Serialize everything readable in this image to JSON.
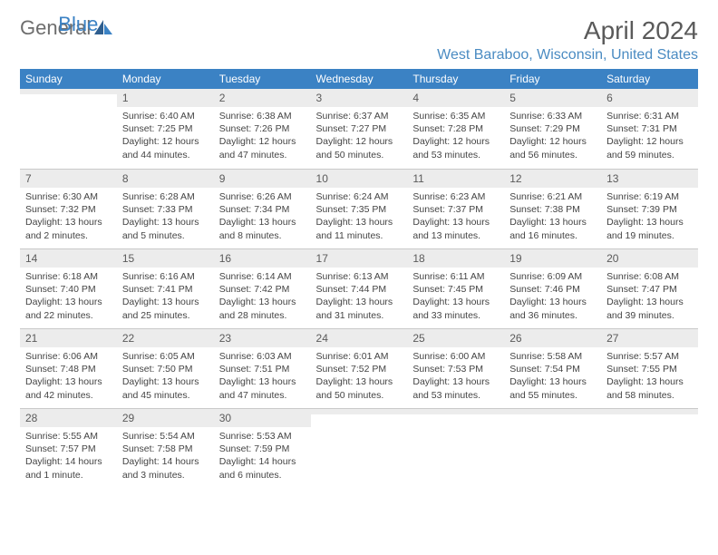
{
  "logo": {
    "part1": "General",
    "part2": "Blue"
  },
  "title": "April 2024",
  "location": "West Baraboo, Wisconsin, United States",
  "header_bg": "#3b82c4",
  "daynum_bg": "#ececec",
  "dayHeaders": [
    "Sunday",
    "Monday",
    "Tuesday",
    "Wednesday",
    "Thursday",
    "Friday",
    "Saturday"
  ],
  "weeks": [
    [
      {
        "n": "",
        "sr": "",
        "ss": "",
        "d1": "",
        "d2": ""
      },
      {
        "n": "1",
        "sr": "Sunrise: 6:40 AM",
        "ss": "Sunset: 7:25 PM",
        "d1": "Daylight: 12 hours",
        "d2": "and 44 minutes."
      },
      {
        "n": "2",
        "sr": "Sunrise: 6:38 AM",
        "ss": "Sunset: 7:26 PM",
        "d1": "Daylight: 12 hours",
        "d2": "and 47 minutes."
      },
      {
        "n": "3",
        "sr": "Sunrise: 6:37 AM",
        "ss": "Sunset: 7:27 PM",
        "d1": "Daylight: 12 hours",
        "d2": "and 50 minutes."
      },
      {
        "n": "4",
        "sr": "Sunrise: 6:35 AM",
        "ss": "Sunset: 7:28 PM",
        "d1": "Daylight: 12 hours",
        "d2": "and 53 minutes."
      },
      {
        "n": "5",
        "sr": "Sunrise: 6:33 AM",
        "ss": "Sunset: 7:29 PM",
        "d1": "Daylight: 12 hours",
        "d2": "and 56 minutes."
      },
      {
        "n": "6",
        "sr": "Sunrise: 6:31 AM",
        "ss": "Sunset: 7:31 PM",
        "d1": "Daylight: 12 hours",
        "d2": "and 59 minutes."
      }
    ],
    [
      {
        "n": "7",
        "sr": "Sunrise: 6:30 AM",
        "ss": "Sunset: 7:32 PM",
        "d1": "Daylight: 13 hours",
        "d2": "and 2 minutes."
      },
      {
        "n": "8",
        "sr": "Sunrise: 6:28 AM",
        "ss": "Sunset: 7:33 PM",
        "d1": "Daylight: 13 hours",
        "d2": "and 5 minutes."
      },
      {
        "n": "9",
        "sr": "Sunrise: 6:26 AM",
        "ss": "Sunset: 7:34 PM",
        "d1": "Daylight: 13 hours",
        "d2": "and 8 minutes."
      },
      {
        "n": "10",
        "sr": "Sunrise: 6:24 AM",
        "ss": "Sunset: 7:35 PM",
        "d1": "Daylight: 13 hours",
        "d2": "and 11 minutes."
      },
      {
        "n": "11",
        "sr": "Sunrise: 6:23 AM",
        "ss": "Sunset: 7:37 PM",
        "d1": "Daylight: 13 hours",
        "d2": "and 13 minutes."
      },
      {
        "n": "12",
        "sr": "Sunrise: 6:21 AM",
        "ss": "Sunset: 7:38 PM",
        "d1": "Daylight: 13 hours",
        "d2": "and 16 minutes."
      },
      {
        "n": "13",
        "sr": "Sunrise: 6:19 AM",
        "ss": "Sunset: 7:39 PM",
        "d1": "Daylight: 13 hours",
        "d2": "and 19 minutes."
      }
    ],
    [
      {
        "n": "14",
        "sr": "Sunrise: 6:18 AM",
        "ss": "Sunset: 7:40 PM",
        "d1": "Daylight: 13 hours",
        "d2": "and 22 minutes."
      },
      {
        "n": "15",
        "sr": "Sunrise: 6:16 AM",
        "ss": "Sunset: 7:41 PM",
        "d1": "Daylight: 13 hours",
        "d2": "and 25 minutes."
      },
      {
        "n": "16",
        "sr": "Sunrise: 6:14 AM",
        "ss": "Sunset: 7:42 PM",
        "d1": "Daylight: 13 hours",
        "d2": "and 28 minutes."
      },
      {
        "n": "17",
        "sr": "Sunrise: 6:13 AM",
        "ss": "Sunset: 7:44 PM",
        "d1": "Daylight: 13 hours",
        "d2": "and 31 minutes."
      },
      {
        "n": "18",
        "sr": "Sunrise: 6:11 AM",
        "ss": "Sunset: 7:45 PM",
        "d1": "Daylight: 13 hours",
        "d2": "and 33 minutes."
      },
      {
        "n": "19",
        "sr": "Sunrise: 6:09 AM",
        "ss": "Sunset: 7:46 PM",
        "d1": "Daylight: 13 hours",
        "d2": "and 36 minutes."
      },
      {
        "n": "20",
        "sr": "Sunrise: 6:08 AM",
        "ss": "Sunset: 7:47 PM",
        "d1": "Daylight: 13 hours",
        "d2": "and 39 minutes."
      }
    ],
    [
      {
        "n": "21",
        "sr": "Sunrise: 6:06 AM",
        "ss": "Sunset: 7:48 PM",
        "d1": "Daylight: 13 hours",
        "d2": "and 42 minutes."
      },
      {
        "n": "22",
        "sr": "Sunrise: 6:05 AM",
        "ss": "Sunset: 7:50 PM",
        "d1": "Daylight: 13 hours",
        "d2": "and 45 minutes."
      },
      {
        "n": "23",
        "sr": "Sunrise: 6:03 AM",
        "ss": "Sunset: 7:51 PM",
        "d1": "Daylight: 13 hours",
        "d2": "and 47 minutes."
      },
      {
        "n": "24",
        "sr": "Sunrise: 6:01 AM",
        "ss": "Sunset: 7:52 PM",
        "d1": "Daylight: 13 hours",
        "d2": "and 50 minutes."
      },
      {
        "n": "25",
        "sr": "Sunrise: 6:00 AM",
        "ss": "Sunset: 7:53 PM",
        "d1": "Daylight: 13 hours",
        "d2": "and 53 minutes."
      },
      {
        "n": "26",
        "sr": "Sunrise: 5:58 AM",
        "ss": "Sunset: 7:54 PM",
        "d1": "Daylight: 13 hours",
        "d2": "and 55 minutes."
      },
      {
        "n": "27",
        "sr": "Sunrise: 5:57 AM",
        "ss": "Sunset: 7:55 PM",
        "d1": "Daylight: 13 hours",
        "d2": "and 58 minutes."
      }
    ],
    [
      {
        "n": "28",
        "sr": "Sunrise: 5:55 AM",
        "ss": "Sunset: 7:57 PM",
        "d1": "Daylight: 14 hours",
        "d2": "and 1 minute."
      },
      {
        "n": "29",
        "sr": "Sunrise: 5:54 AM",
        "ss": "Sunset: 7:58 PM",
        "d1": "Daylight: 14 hours",
        "d2": "and 3 minutes."
      },
      {
        "n": "30",
        "sr": "Sunrise: 5:53 AM",
        "ss": "Sunset: 7:59 PM",
        "d1": "Daylight: 14 hours",
        "d2": "and 6 minutes."
      },
      {
        "n": "",
        "sr": "",
        "ss": "",
        "d1": "",
        "d2": ""
      },
      {
        "n": "",
        "sr": "",
        "ss": "",
        "d1": "",
        "d2": ""
      },
      {
        "n": "",
        "sr": "",
        "ss": "",
        "d1": "",
        "d2": ""
      },
      {
        "n": "",
        "sr": "",
        "ss": "",
        "d1": "",
        "d2": ""
      }
    ]
  ]
}
